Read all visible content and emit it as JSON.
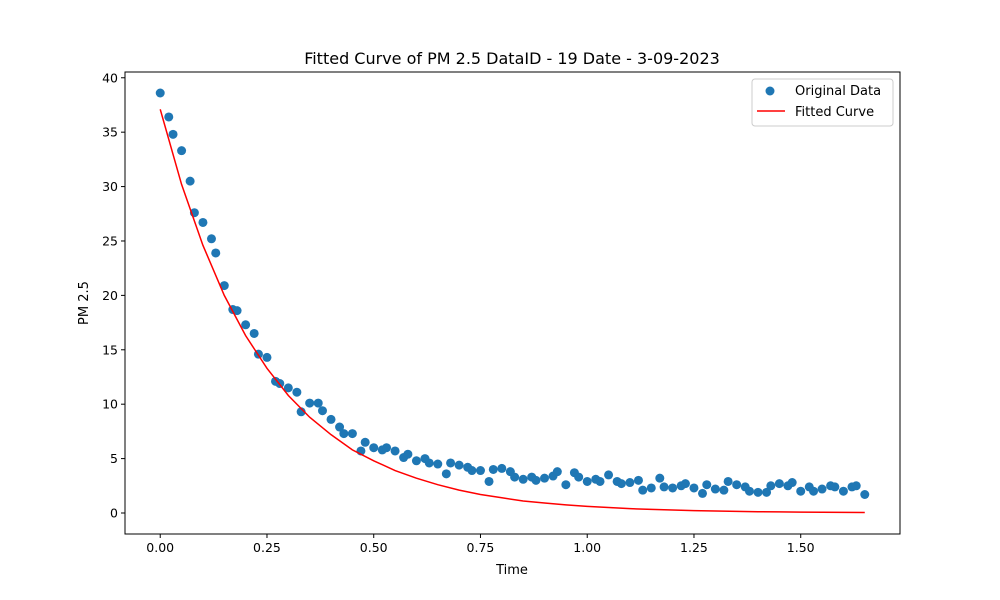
{
  "chart_data": {
    "type": "scatter",
    "title": "Fitted Curve of PM 2.5 DataID - 19 Date - 3-09-2023",
    "xlabel": "Time",
    "ylabel": "PM 2.5",
    "xlim": [
      -0.0825,
      1.7325
    ],
    "ylim": [
      -1.93,
      40.53
    ],
    "x_ticks": [
      0.0,
      0.25,
      0.5,
      0.75,
      1.0,
      1.25,
      1.5
    ],
    "x_tick_labels": [
      "0.00",
      "0.25",
      "0.50",
      "0.75",
      "1.00",
      "1.25",
      "1.50"
    ],
    "y_ticks": [
      0,
      5,
      10,
      15,
      20,
      25,
      30,
      35,
      40
    ],
    "y_tick_labels": [
      "0",
      "5",
      "10",
      "15",
      "20",
      "25",
      "30",
      "35",
      "40"
    ],
    "grid": false,
    "legend": {
      "position": "top-right",
      "entries": [
        "Original Data",
        "Fitted Curve"
      ]
    },
    "series": [
      {
        "name": "Original Data",
        "kind": "scatter",
        "color": "#1f77b4",
        "x": [
          0.0,
          0.02,
          0.03,
          0.05,
          0.07,
          0.08,
          0.1,
          0.12,
          0.13,
          0.15,
          0.17,
          0.18,
          0.2,
          0.22,
          0.23,
          0.25,
          0.27,
          0.28,
          0.3,
          0.32,
          0.33,
          0.35,
          0.37,
          0.38,
          0.4,
          0.42,
          0.43,
          0.45,
          0.47,
          0.48,
          0.5,
          0.52,
          0.53,
          0.55,
          0.57,
          0.58,
          0.6,
          0.62,
          0.63,
          0.65,
          0.67,
          0.68,
          0.7,
          0.72,
          0.73,
          0.75,
          0.77,
          0.78,
          0.8,
          0.82,
          0.83,
          0.85,
          0.87,
          0.88,
          0.9,
          0.92,
          0.93,
          0.95,
          0.97,
          0.98,
          1.0,
          1.02,
          1.03,
          1.05,
          1.07,
          1.08,
          1.1,
          1.12,
          1.13,
          1.15,
          1.17,
          1.18,
          1.2,
          1.22,
          1.23,
          1.25,
          1.27,
          1.28,
          1.3,
          1.32,
          1.33,
          1.35,
          1.37,
          1.38,
          1.4,
          1.42,
          1.43,
          1.45,
          1.47,
          1.48,
          1.5,
          1.52,
          1.53,
          1.55,
          1.57,
          1.58,
          1.6,
          1.62,
          1.63,
          1.65
        ],
        "y": [
          38.6,
          36.4,
          34.8,
          33.3,
          30.5,
          27.6,
          26.7,
          25.2,
          23.9,
          20.9,
          18.7,
          18.6,
          17.3,
          16.5,
          14.6,
          14.3,
          12.1,
          11.9,
          11.5,
          11.1,
          9.3,
          10.1,
          10.1,
          9.4,
          8.6,
          7.9,
          7.3,
          7.3,
          5.7,
          6.5,
          6.0,
          5.8,
          6.0,
          5.7,
          5.1,
          5.4,
          4.8,
          5.0,
          4.6,
          4.5,
          3.6,
          4.6,
          4.4,
          4.2,
          3.9,
          3.9,
          2.9,
          4.0,
          4.1,
          3.8,
          3.3,
          3.1,
          3.3,
          3.0,
          3.2,
          3.4,
          3.8,
          2.6,
          3.7,
          3.3,
          2.9,
          3.1,
          2.9,
          3.5,
          2.9,
          2.7,
          2.8,
          3.0,
          2.1,
          2.3,
          3.2,
          2.4,
          2.3,
          2.5,
          2.7,
          2.3,
          1.8,
          2.6,
          2.2,
          2.1,
          2.9,
          2.6,
          2.4,
          2.0,
          1.9,
          1.9,
          2.5,
          2.7,
          2.5,
          2.8,
          2.0,
          2.4,
          2.0,
          2.2,
          2.5,
          2.4,
          2.0,
          2.4,
          2.5,
          1.7
        ]
      },
      {
        "name": "Fitted Curve",
        "kind": "line",
        "color": "#ff0000",
        "x": [
          0.0,
          0.05,
          0.1,
          0.15,
          0.2,
          0.25,
          0.3,
          0.35,
          0.4,
          0.45,
          0.5,
          0.55,
          0.6,
          0.65,
          0.7,
          0.75,
          0.8,
          0.85,
          0.9,
          0.95,
          1.0,
          1.05,
          1.1,
          1.15,
          1.2,
          1.25,
          1.3,
          1.35,
          1.4,
          1.45,
          1.5,
          1.55,
          1.6,
          1.65
        ],
        "y": [
          37.1,
          30.2,
          24.6,
          20.0,
          16.3,
          13.3,
          10.8,
          8.8,
          7.2,
          5.8,
          4.8,
          3.9,
          3.2,
          2.6,
          2.1,
          1.7,
          1.4,
          1.1,
          0.92,
          0.75,
          0.61,
          0.5,
          0.4,
          0.33,
          0.27,
          0.22,
          0.18,
          0.15,
          0.12,
          0.1,
          0.08,
          0.065,
          0.053,
          0.043
        ]
      }
    ]
  }
}
